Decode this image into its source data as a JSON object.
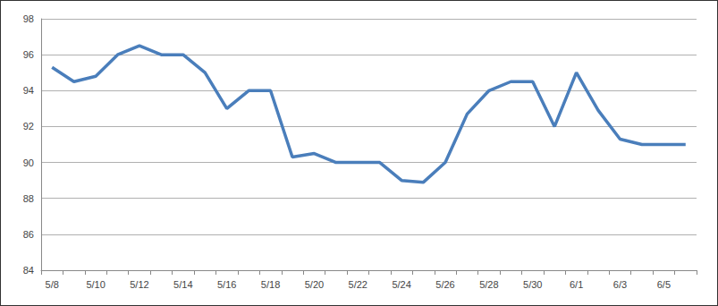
{
  "chart_data": {
    "type": "line",
    "categories": [
      "5/8",
      null,
      "5/10",
      null,
      "5/12",
      null,
      "5/14",
      null,
      "5/16",
      null,
      "5/18",
      null,
      "5/20",
      null,
      "5/22",
      null,
      "5/24",
      null,
      "5/26",
      null,
      "5/28",
      null,
      "5/30",
      null,
      "6/1",
      null,
      "6/3",
      null,
      "6/5",
      null
    ],
    "values": [
      95.3,
      94.5,
      94.8,
      96.0,
      96.5,
      96.0,
      96.0,
      95.0,
      93.0,
      94.0,
      94.0,
      90.3,
      90.5,
      90.0,
      90.0,
      90.0,
      89.0,
      88.9,
      90.0,
      92.7,
      94.0,
      94.5,
      94.5,
      92.0,
      95.0,
      92.9,
      91.3,
      91.0,
      91.0,
      91.0
    ],
    "color": "#4a7ebb",
    "ylim": [
      84,
      98
    ],
    "yticks": [
      84,
      86,
      88,
      90,
      92,
      94,
      96,
      98
    ],
    "grid": true
  }
}
